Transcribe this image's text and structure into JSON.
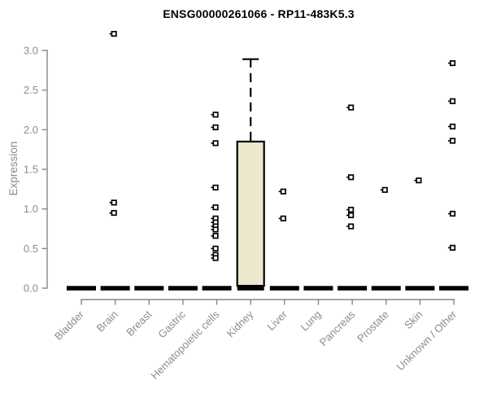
{
  "header": {
    "title": "ENSG00000261066 - RP11-483K5.3"
  },
  "colors": {
    "background": "#ffffff",
    "axis": "#878787",
    "tick_label": "#8c8c8c",
    "box_fill": "#ece8cd",
    "data_stroke": "#000000",
    "outlier_fill": "#ffffff",
    "title_color": "#000000"
  },
  "chart_data": {
    "type": "boxplot",
    "title": "ENSG00000261066 - RP11-483K5.3",
    "xlabel": "",
    "ylabel": "Expression",
    "ylim": [
      0.0,
      3.3
    ],
    "yticks": [
      0.0,
      0.5,
      1.0,
      1.5,
      2.0,
      2.5,
      3.0
    ],
    "grid": false,
    "legend": "none",
    "categories": [
      "Bladder",
      "Brain",
      "Breast",
      "Gastric",
      "Hematopoietic cells",
      "Kidney",
      "Liver",
      "Lung",
      "Pancreas",
      "Prostate",
      "Skin",
      "Unknown / Other"
    ],
    "boxes": [
      {
        "category": "Bladder",
        "q1": 0,
        "median": 0,
        "q3": 0,
        "whisker_low": 0,
        "whisker_high": 0,
        "outliers": []
      },
      {
        "category": "Brain",
        "q1": 0,
        "median": 0,
        "q3": 0,
        "whisker_low": 0,
        "whisker_high": 0,
        "outliers": [
          3.21,
          1.08,
          0.95
        ]
      },
      {
        "category": "Breast",
        "q1": 0,
        "median": 0,
        "q3": 0,
        "whisker_low": 0,
        "whisker_high": 0,
        "outliers": []
      },
      {
        "category": "Gastric",
        "q1": 0,
        "median": 0,
        "q3": 0,
        "whisker_low": 0,
        "whisker_high": 0,
        "outliers": []
      },
      {
        "category": "Hematopoietic cells",
        "q1": 0,
        "median": 0,
        "q3": 0,
        "whisker_low": 0,
        "whisker_high": 0,
        "outliers": [
          2.19,
          2.03,
          1.83,
          1.27,
          1.02,
          0.88,
          0.83,
          0.78,
          0.74,
          0.66,
          0.5,
          0.42,
          0.38
        ]
      },
      {
        "category": "Kidney",
        "q1": 0,
        "median": 0.02,
        "q3": 1.85,
        "whisker_low": 0,
        "whisker_high": 2.89,
        "outliers": []
      },
      {
        "category": "Liver",
        "q1": 0,
        "median": 0,
        "q3": 0,
        "whisker_low": 0,
        "whisker_high": 0,
        "outliers": [
          1.22,
          0.88
        ]
      },
      {
        "category": "Lung",
        "q1": 0,
        "median": 0,
        "q3": 0,
        "whisker_low": 0,
        "whisker_high": 0,
        "outliers": []
      },
      {
        "category": "Pancreas",
        "q1": 0,
        "median": 0,
        "q3": 0,
        "whisker_low": 0,
        "whisker_high": 0,
        "outliers": [
          2.28,
          1.4,
          0.99,
          0.92,
          0.78
        ]
      },
      {
        "category": "Prostate",
        "q1": 0,
        "median": 0,
        "q3": 0,
        "whisker_low": 0,
        "whisker_high": 0,
        "outliers": [
          1.24
        ]
      },
      {
        "category": "Skin",
        "q1": 0,
        "median": 0,
        "q3": 0,
        "whisker_low": 0,
        "whisker_high": 0,
        "outliers": [
          1.36
        ]
      },
      {
        "category": "Unknown / Other",
        "q1": 0,
        "median": 0,
        "q3": 0,
        "whisker_low": 0,
        "whisker_high": 0,
        "outliers": [
          2.84,
          2.36,
          2.04,
          1.86,
          0.94,
          0.51
        ]
      }
    ]
  }
}
